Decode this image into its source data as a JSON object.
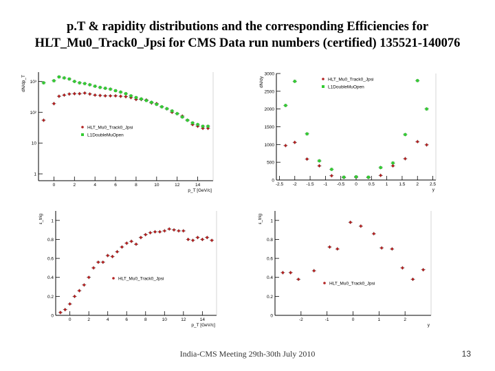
{
  "slide": {
    "title_line1": "p.T & rapidity distributions and the corresponding Efficiencies for",
    "title_line2": "HLT_Mu0_Track0_Jpsi for CMS Data run numbers (certified) 135521-140076",
    "footer": "India-CMS Meeting 29th-30th July 2010",
    "page_number": "13"
  },
  "colors": {
    "hlt": "#b22222",
    "l1": "#33cc33",
    "axis": "#000000"
  },
  "chart_data": [
    {
      "id": "pt-dist",
      "type": "scatter",
      "yscale": "log",
      "xlim": [
        -1.5,
        15.5
      ],
      "ylim": [
        0.6,
        2000
      ],
      "ylabel": "dN/dp_T",
      "xlabel": "p_T [GeV/c]",
      "xticks": [
        {
          "v": 0,
          "label": "0"
        },
        {
          "v": 2,
          "label": "2"
        },
        {
          "v": 4,
          "label": "4"
        },
        {
          "v": 6,
          "label": "6"
        },
        {
          "v": 8,
          "label": "8"
        },
        {
          "v": 10,
          "label": "10"
        },
        {
          "v": 12,
          "label": "12"
        },
        {
          "v": 14,
          "label": "14"
        }
      ],
      "yticks": [
        {
          "v": 1,
          "label": "1"
        },
        {
          "v": 10,
          "label": "10"
        },
        {
          "v": 100,
          "label": "10²"
        },
        {
          "v": 1000,
          "label": "10³"
        }
      ],
      "legend": {
        "position": "lower-left",
        "entries": [
          "HLT_Mu0_Track0_Jpsi",
          "L1DoubleMuOpen"
        ]
      },
      "series": [
        {
          "name": "HLT_Mu0_Track0_Jpsi",
          "color": "#b22222",
          "marker": "circle",
          "x": [
            -1.0,
            0.0,
            0.5,
            1.0,
            1.5,
            2.0,
            2.5,
            3.0,
            3.5,
            4.0,
            4.5,
            5.0,
            5.5,
            6.0,
            6.5,
            7.0,
            7.5,
            8.0,
            8.5,
            9.0,
            9.5,
            10.0,
            10.5,
            11.0,
            11.5,
            12.0,
            12.5,
            13.0,
            13.5,
            14.0,
            14.5,
            15.0
          ],
          "y": [
            55,
            190,
            330,
            360,
            390,
            400,
            400,
            420,
            390,
            360,
            350,
            340,
            340,
            340,
            330,
            320,
            300,
            260,
            260,
            250,
            200,
            190,
            150,
            130,
            100,
            90,
            75,
            55,
            40,
            35,
            30,
            30
          ]
        },
        {
          "name": "L1DoubleMuOpen",
          "color": "#33cc33",
          "marker": "square",
          "x": [
            -1.0,
            0.0,
            0.5,
            1.0,
            1.5,
            2.0,
            2.5,
            3.0,
            3.5,
            4.0,
            4.5,
            5.0,
            5.5,
            6.0,
            6.5,
            7.0,
            7.5,
            8.0,
            8.5,
            9.0,
            9.5,
            10.0,
            10.5,
            11.0,
            11.5,
            12.0,
            12.5,
            13.0,
            13.5,
            14.0,
            14.5,
            15.0
          ],
          "y": [
            900,
            1050,
            1400,
            1300,
            1200,
            1000,
            900,
            850,
            780,
            700,
            640,
            600,
            560,
            500,
            450,
            400,
            340,
            300,
            270,
            240,
            210,
            180,
            150,
            130,
            110,
            90,
            70,
            55,
            45,
            40,
            35,
            35
          ]
        }
      ]
    },
    {
      "id": "rap-dist",
      "type": "scatter",
      "xlim": [
        -2.6,
        2.6
      ],
      "ylim": [
        0,
        3000
      ],
      "ylabel": "dN/dy",
      "xlabel": "y",
      "xticks": [
        {
          "v": -2.5,
          "label": "-2.5"
        },
        {
          "v": -2,
          "label": "-2"
        },
        {
          "v": -1.5,
          "label": "-1.5"
        },
        {
          "v": -1,
          "label": "-1"
        },
        {
          "v": -0.5,
          "label": "-0.5"
        },
        {
          "v": 0,
          "label": "0"
        },
        {
          "v": 0.5,
          "label": "0.5"
        },
        {
          "v": 1,
          "label": "1"
        },
        {
          "v": 1.5,
          "label": "1.5"
        },
        {
          "v": 2,
          "label": "2"
        },
        {
          "v": 2.5,
          "label": "2.5"
        }
      ],
      "yticks": [
        {
          "v": 0,
          "label": "0"
        },
        {
          "v": 500,
          "label": "500"
        },
        {
          "v": 1000,
          "label": "1000"
        },
        {
          "v": 1500,
          "label": "1500"
        },
        {
          "v": 2000,
          "label": "2000"
        },
        {
          "v": 2500,
          "label": "2500"
        },
        {
          "v": 3000,
          "label": "3000"
        }
      ],
      "legend": {
        "position": "top-center",
        "entries": [
          "HLT_Mu0_Track0_Jpsi",
          "L1DoubleMuOpen"
        ]
      },
      "series": [
        {
          "name": "HLT_Mu0_Track0_Jpsi",
          "color": "#b22222",
          "marker": "circle",
          "x": [
            -2.3,
            -2.0,
            -1.6,
            -1.2,
            -0.8,
            -0.4,
            0.0,
            0.4,
            0.8,
            1.2,
            1.6,
            2.0,
            2.3
          ],
          "y": [
            970,
            1060,
            590,
            400,
            120,
            70,
            80,
            70,
            130,
            400,
            600,
            1080,
            990
          ]
        },
        {
          "name": "L1DoubleMuOpen",
          "color": "#33cc33",
          "marker": "square",
          "x": [
            -2.3,
            -2.0,
            -1.6,
            -1.2,
            -0.8,
            -0.4,
            0.0,
            0.4,
            0.8,
            1.2,
            1.6,
            2.0,
            2.3
          ],
          "y": [
            2100,
            2780,
            1300,
            540,
            300,
            80,
            90,
            80,
            350,
            480,
            1280,
            2800,
            2000
          ]
        }
      ]
    },
    {
      "id": "pt-eff",
      "type": "scatter",
      "xlim": [
        -1.5,
        15.5
      ],
      "ylim": [
        0,
        1.1
      ],
      "ylabel": "ε_trig",
      "xlabel": "p_T [GeV/c]",
      "xticks": [
        {
          "v": 0,
          "label": "0"
        },
        {
          "v": 2,
          "label": "2"
        },
        {
          "v": 4,
          "label": "4"
        },
        {
          "v": 6,
          "label": "6"
        },
        {
          "v": 8,
          "label": "8"
        },
        {
          "v": 10,
          "label": "10"
        },
        {
          "v": 12,
          "label": "12"
        },
        {
          "v": 14,
          "label": "14"
        }
      ],
      "yticks": [
        {
          "v": 0,
          "label": "0"
        },
        {
          "v": 0.2,
          "label": "0.2"
        },
        {
          "v": 0.4,
          "label": "0.4"
        },
        {
          "v": 0.6,
          "label": "0.6"
        },
        {
          "v": 0.8,
          "label": "0.8"
        },
        {
          "v": 1,
          "label": "1"
        }
      ],
      "legend": {
        "position": "lower-center",
        "entries": [
          "HLT_Mu0_Track0_Jpsi"
        ]
      },
      "series": [
        {
          "name": "HLT_Mu0_Track0_Jpsi",
          "color": "#b22222",
          "marker": "circle",
          "x": [
            -1.0,
            -0.5,
            0.0,
            0.5,
            1.0,
            1.5,
            2.0,
            2.5,
            3.0,
            3.5,
            4.0,
            4.5,
            5.0,
            5.5,
            6.0,
            6.5,
            7.0,
            7.5,
            8.0,
            8.5,
            9.0,
            9.5,
            10.0,
            10.5,
            11.0,
            11.5,
            12.0,
            12.5,
            13.0,
            13.5,
            14.0,
            14.5,
            15.0
          ],
          "y": [
            0.03,
            0.06,
            0.12,
            0.2,
            0.26,
            0.32,
            0.4,
            0.5,
            0.56,
            0.56,
            0.63,
            0.62,
            0.67,
            0.72,
            0.76,
            0.78,
            0.75,
            0.82,
            0.85,
            0.87,
            0.88,
            0.88,
            0.89,
            0.91,
            0.9,
            0.89,
            0.89,
            0.8,
            0.79,
            0.82,
            0.8,
            0.82,
            0.79
          ]
        }
      ]
    },
    {
      "id": "rap-eff",
      "type": "scatter",
      "xlim": [
        -3,
        3
      ],
      "ylim": [
        0,
        1.1
      ],
      "ylabel": "ε_trig",
      "xlabel": "y",
      "xticks": [
        {
          "v": -2,
          "label": "-2"
        },
        {
          "v": -1,
          "label": "-1"
        },
        {
          "v": 0,
          "label": "0"
        },
        {
          "v": 1,
          "label": "1"
        },
        {
          "v": 2,
          "label": "2"
        }
      ],
      "yticks": [
        {
          "v": 0,
          "label": "0"
        },
        {
          "v": 0.2,
          "label": "0.2"
        },
        {
          "v": 0.4,
          "label": "0.4"
        },
        {
          "v": 0.6,
          "label": "0.6"
        },
        {
          "v": 0.8,
          "label": "0.8"
        },
        {
          "v": 1,
          "label": "1"
        }
      ],
      "legend": {
        "position": "lower-center",
        "entries": [
          "HLT_Mu0_Track0_Jpsi"
        ]
      },
      "series": [
        {
          "name": "HLT_Mu0_Track0_Jpsi",
          "color": "#b22222",
          "marker": "circle",
          "x": [
            -2.7,
            -2.4,
            -2.1,
            -1.5,
            -0.9,
            -0.6,
            -0.1,
            0.3,
            0.8,
            1.1,
            1.5,
            1.9,
            2.3,
            2.7
          ],
          "y": [
            0.45,
            0.45,
            0.38,
            0.47,
            0.72,
            0.7,
            0.98,
            0.94,
            0.86,
            0.71,
            0.7,
            0.5,
            0.38,
            0.48
          ]
        }
      ]
    }
  ]
}
